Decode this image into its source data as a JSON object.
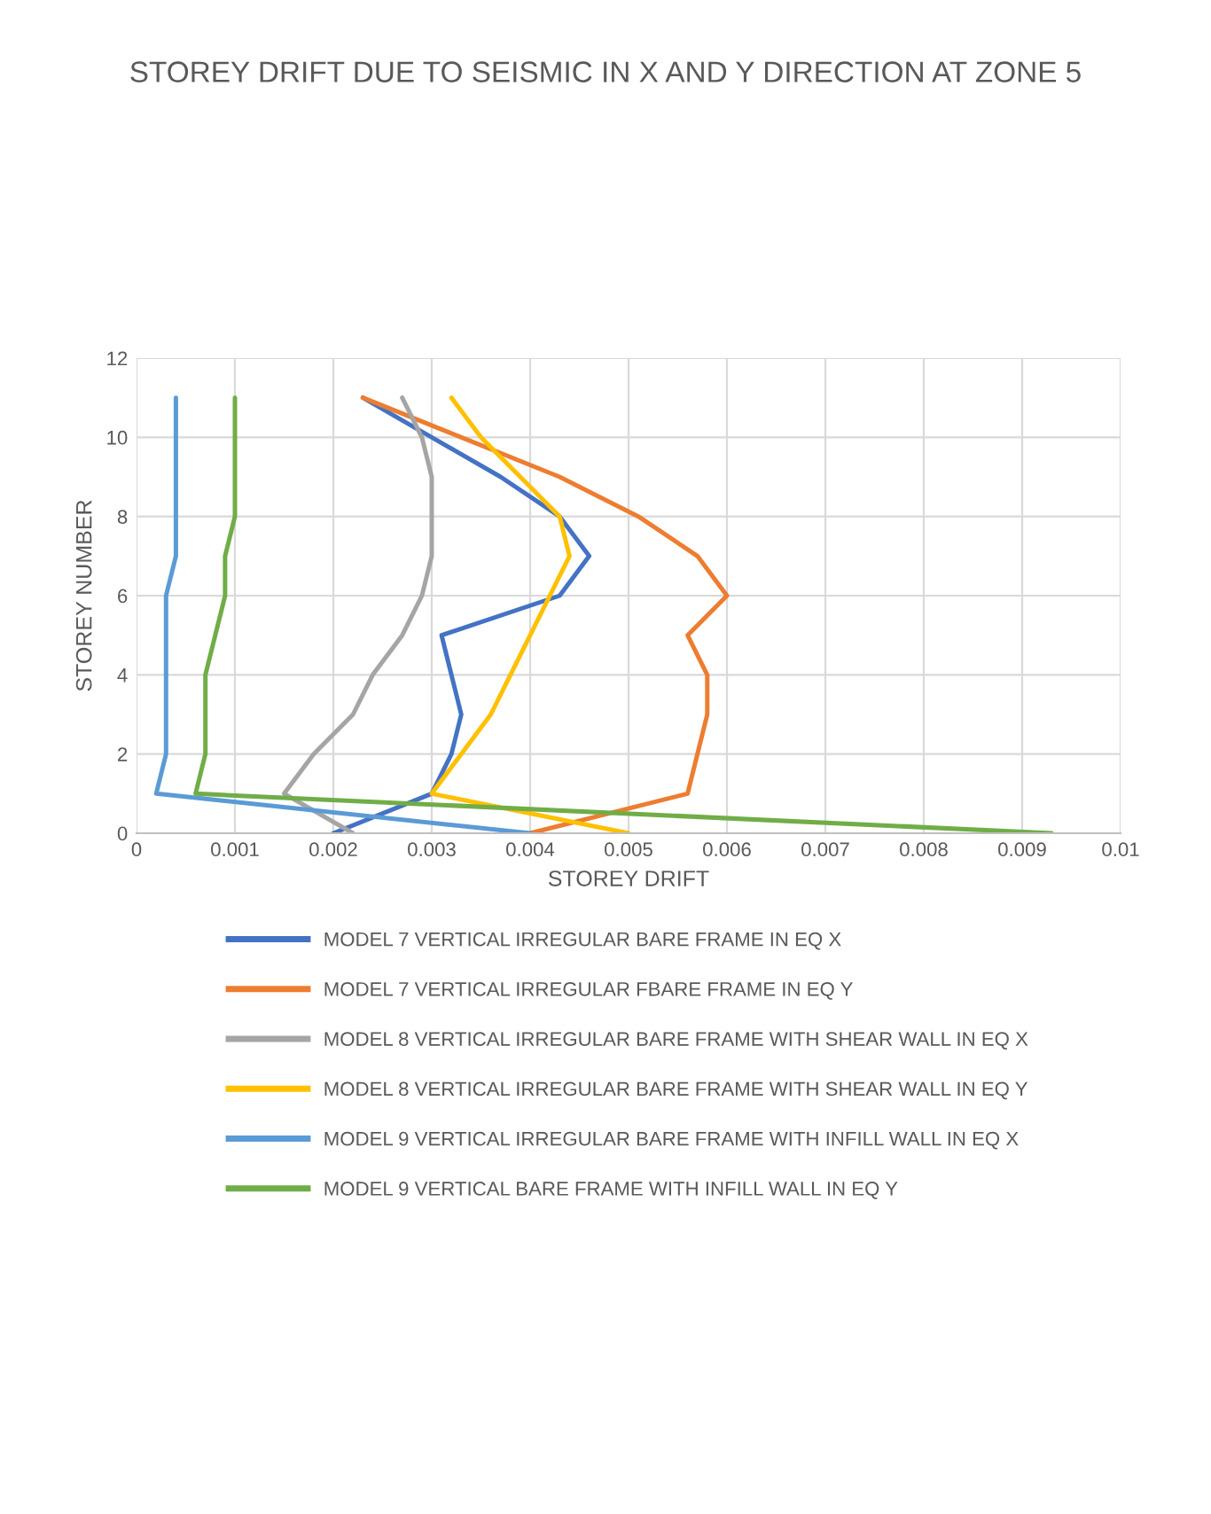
{
  "chart_data": {
    "type": "line",
    "title": "STOREY DRIFT DUE TO SEISMIC IN X AND Y DIRECTION AT ZONE 5",
    "xlabel": "STOREY DRIFT",
    "ylabel": "STOREY NUMBER",
    "xlim": [
      0,
      0.01
    ],
    "xticks": [
      0,
      0.001,
      0.002,
      0.003,
      0.004,
      0.005,
      0.006,
      0.007,
      0.008,
      0.009,
      0.01
    ],
    "ylim": [
      0,
      12
    ],
    "yticks": [
      0,
      2,
      4,
      6,
      8,
      10,
      12
    ],
    "grid": true,
    "legend": "bottom",
    "marker": "none",
    "line_style": "solid",
    "series": [
      {
        "name": "MODEL 7 VERTICAL IRREGULAR BARE FRAME IN EQ X",
        "color": "#4472c4",
        "x": [
          0.002,
          0.003,
          0.0032,
          0.0033,
          0.0032,
          0.0031,
          0.0043,
          0.0046,
          0.0043,
          0.0037,
          0.003,
          0.0023
        ],
        "values": [
          0,
          1,
          2,
          3,
          4,
          5,
          6,
          7,
          8,
          9,
          10,
          11
        ]
      },
      {
        "name": "MODEL 7 VERTICAL IRREGULAR FBARE FRAME IN EQ Y",
        "color": "#ed7d31",
        "x": [
          0.004,
          0.0056,
          0.0057,
          0.0058,
          0.0058,
          0.0056,
          0.006,
          0.0057,
          0.0051,
          0.0043,
          0.0033,
          0.0023
        ],
        "values": [
          0,
          1,
          2,
          3,
          4,
          5,
          6,
          7,
          8,
          9,
          10,
          11
        ]
      },
      {
        "name": "MODEL 8 VERTICAL IRREGULAR BARE FRAME WITH SHEAR WALL IN EQ X",
        "color": "#a5a5a5",
        "x": [
          0.0022,
          0.0015,
          0.0018,
          0.0022,
          0.0024,
          0.0027,
          0.0029,
          0.003,
          0.003,
          0.003,
          0.0029,
          0.0027
        ],
        "values": [
          0,
          1,
          2,
          3,
          4,
          5,
          6,
          7,
          8,
          9,
          10,
          11
        ]
      },
      {
        "name": "MODEL 8 VERTICAL IRREGULAR BARE FRAME WITH SHEAR WALL IN EQ Y",
        "color": "#ffc000",
        "x": [
          0.005,
          0.003,
          0.0033,
          0.0036,
          0.0038,
          0.004,
          0.0042,
          0.0044,
          0.0043,
          0.0039,
          0.0035,
          0.0032
        ],
        "values": [
          0,
          1,
          2,
          3,
          4,
          5,
          6,
          7,
          8,
          9,
          10,
          11
        ]
      },
      {
        "name": "MODEL 9 VERTICAL IRREGULAR BARE FRAME WITH INFILL WALL IN EQ X",
        "color": "#5b9bd5",
        "x": [
          0.004,
          0.0002,
          0.0003,
          0.0003,
          0.0003,
          0.0003,
          0.0003,
          0.0004,
          0.0004,
          0.0004,
          0.0004,
          0.0004
        ],
        "values": [
          0,
          1,
          2,
          3,
          4,
          5,
          6,
          7,
          8,
          9,
          10,
          11
        ]
      },
      {
        "name": "MODEL 9 VERTICAL BARE FRAME WITH INFILL WALL IN EQ Y",
        "color": "#70ad47",
        "x": [
          0.0093,
          0.0006,
          0.0007,
          0.0007,
          0.0007,
          0.0008,
          0.0009,
          0.0009,
          0.001,
          0.001,
          0.001,
          0.001
        ],
        "values": [
          0,
          1,
          2,
          3,
          4,
          5,
          6,
          7,
          8,
          9,
          10,
          11
        ]
      }
    ]
  }
}
